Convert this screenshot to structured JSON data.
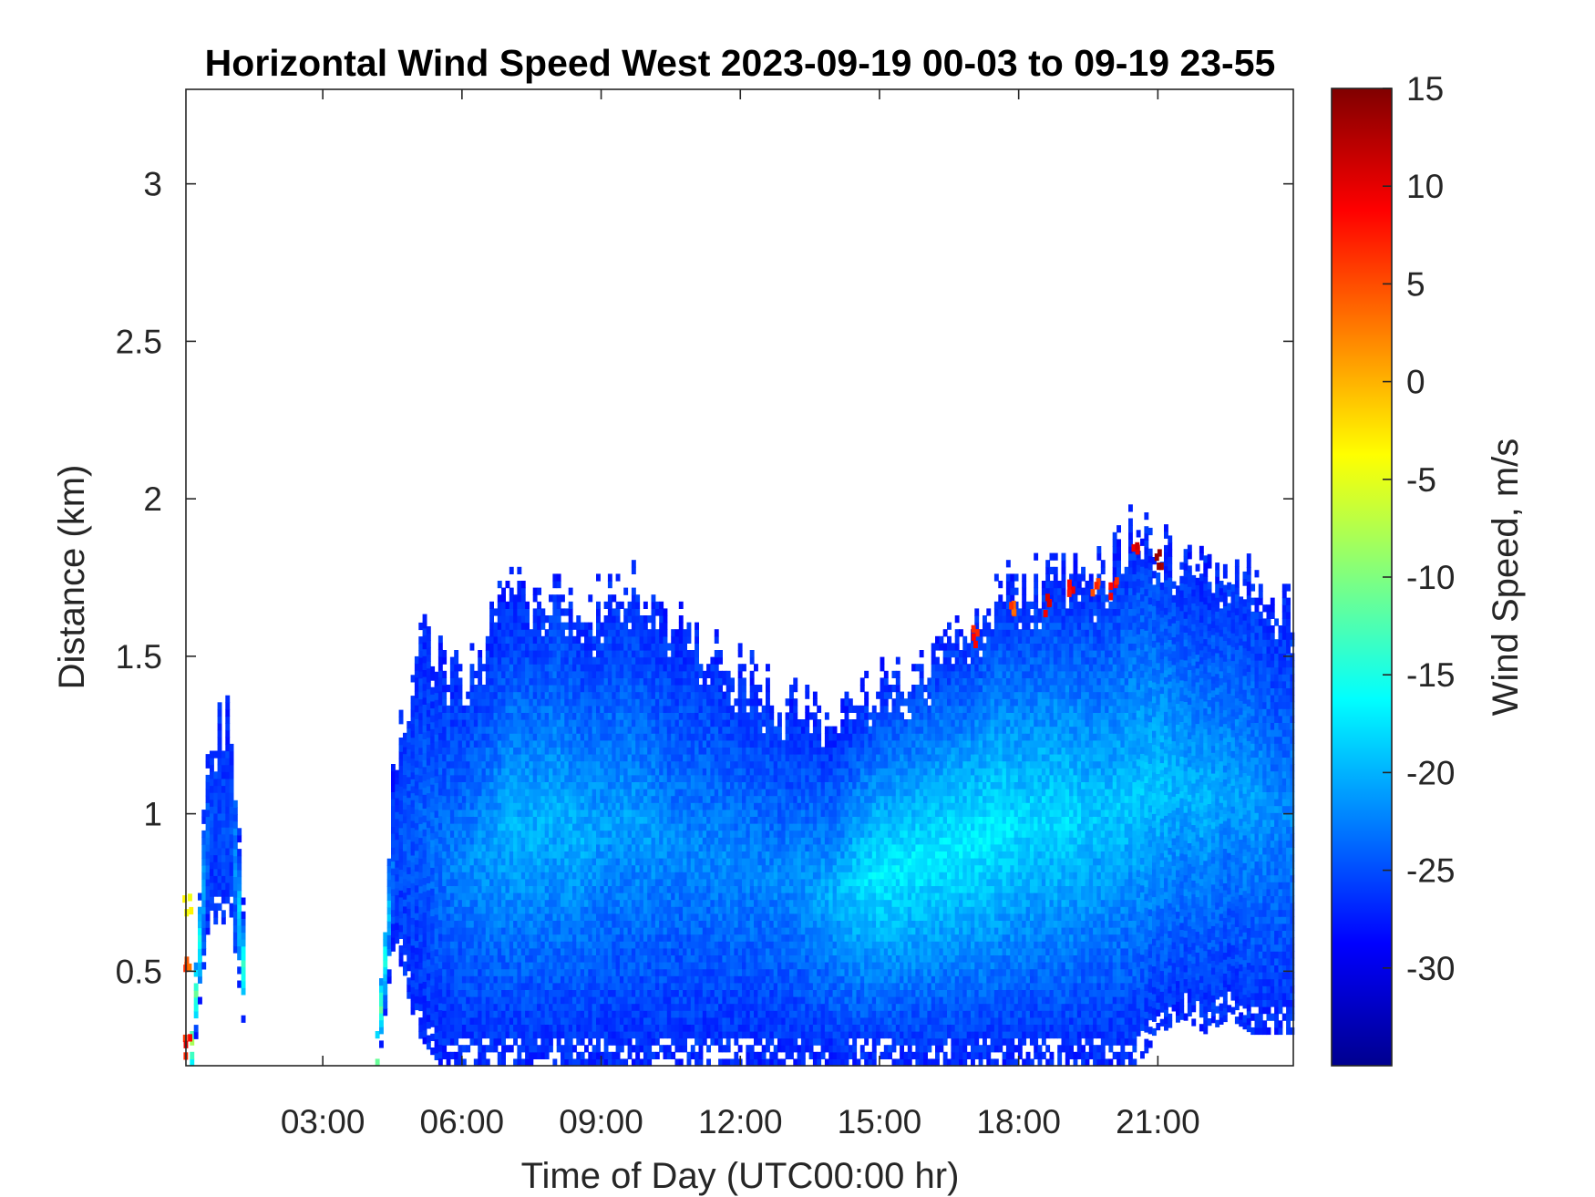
{
  "chart_data": {
    "type": "heatmap",
    "title": "Horizontal Wind Speed West 2023-09-19 00-03 to 09-19 23-55",
    "xlabel": "Time of Day (UTC00:00 hr)",
    "ylabel": "Distance (km)",
    "x_unit": "hours UTC",
    "xlim": [
      0.05,
      23.92
    ],
    "ylim": [
      0.2,
      3.3
    ],
    "x_ticks": [
      {
        "value": 3,
        "label": "03:00"
      },
      {
        "value": 6,
        "label": "06:00"
      },
      {
        "value": 9,
        "label": "09:00"
      },
      {
        "value": 12,
        "label": "12:00"
      },
      {
        "value": 15,
        "label": "15:00"
      },
      {
        "value": 18,
        "label": "18:00"
      },
      {
        "value": 21,
        "label": "21:00"
      }
    ],
    "y_ticks": [
      {
        "value": 0.5,
        "label": "0.5"
      },
      {
        "value": 1,
        "label": "1"
      },
      {
        "value": 1.5,
        "label": "1.5"
      },
      {
        "value": 2,
        "label": "2"
      },
      {
        "value": 2.5,
        "label": "2.5"
      },
      {
        "value": 3,
        "label": "3"
      }
    ],
    "colorbar": {
      "label": "Wind Speed, m/s",
      "colormap": "jet",
      "clim": [
        -35,
        15
      ],
      "ticks": [
        {
          "value": 15,
          "label": "15"
        },
        {
          "value": 10,
          "label": "10"
        },
        {
          "value": 5,
          "label": "5"
        },
        {
          "value": 0,
          "label": "0"
        },
        {
          "value": -5,
          "label": "-5"
        },
        {
          "value": -10,
          "label": "-10"
        },
        {
          "value": -15,
          "label": "-15"
        },
        {
          "value": -20,
          "label": "-20"
        },
        {
          "value": -25,
          "label": "-25"
        },
        {
          "value": -30,
          "label": "-30"
        }
      ]
    },
    "hours": [
      0.0,
      0.5,
      1.0,
      1.5,
      2.0,
      2.5,
      3.0,
      3.5,
      4.0,
      4.5,
      5.0,
      5.5,
      6.0,
      6.5,
      7.0,
      7.5,
      8.0,
      8.5,
      9.0,
      9.5,
      10.0,
      10.5,
      11.0,
      11.5,
      12.0,
      12.5,
      13.0,
      13.5,
      14.0,
      14.5,
      15.0,
      15.5,
      16.0,
      16.5,
      17.0,
      17.5,
      18.0,
      18.5,
      19.0,
      19.5,
      20.0,
      20.5,
      21.0,
      21.5,
      22.0,
      22.5,
      23.0,
      23.5
    ],
    "data_top_km": [
      0.0,
      1.25,
      1.3,
      0.0,
      0.0,
      0.0,
      0.0,
      0.0,
      0.0,
      1.15,
      1.6,
      1.5,
      1.45,
      1.55,
      1.7,
      1.65,
      1.75,
      1.6,
      1.7,
      1.75,
      1.65,
      1.6,
      1.55,
      1.5,
      1.45,
      1.4,
      1.35,
      1.3,
      1.25,
      1.35,
      1.4,
      1.45,
      1.5,
      1.55,
      1.6,
      1.7,
      1.7,
      1.75,
      1.75,
      1.75,
      1.8,
      1.9,
      1.85,
      1.8,
      1.75,
      1.8,
      1.75,
      1.65
    ],
    "data_bottom_km": [
      0.0,
      0.65,
      0.65,
      0.0,
      0.0,
      0.0,
      0.0,
      0.0,
      0.0,
      0.6,
      0.3,
      0.2,
      0.2,
      0.2,
      0.2,
      0.2,
      0.2,
      0.2,
      0.2,
      0.2,
      0.2,
      0.2,
      0.2,
      0.2,
      0.2,
      0.2,
      0.2,
      0.2,
      0.2,
      0.2,
      0.2,
      0.2,
      0.2,
      0.2,
      0.2,
      0.2,
      0.2,
      0.2,
      0.2,
      0.2,
      0.2,
      0.2,
      0.3,
      0.35,
      0.3,
      0.35,
      0.3,
      0.3
    ],
    "core_speed_ms": [
      0,
      -25,
      -25,
      0,
      0,
      0,
      0,
      0,
      0,
      -25,
      -24,
      -23,
      -22,
      -21,
      -20,
      -20,
      -20,
      -20,
      -21,
      -21,
      -21,
      -22,
      -22,
      -22,
      -22,
      -22,
      -22,
      -21,
      -20,
      -18,
      -17,
      -17,
      -17,
      -17,
      -17,
      -17,
      -18,
      -18,
      -18,
      -19,
      -19,
      -19,
      -19,
      -20,
      -20,
      -21,
      -21,
      -22
    ],
    "positive_speed_features": [
      {
        "hour": 17.0,
        "km": 1.55,
        "speed_ms": 8
      },
      {
        "hour": 17.8,
        "km": 1.65,
        "speed_ms": 5
      },
      {
        "hour": 18.6,
        "km": 1.65,
        "speed_ms": 10
      },
      {
        "hour": 19.1,
        "km": 1.7,
        "speed_ms": 8
      },
      {
        "hour": 19.6,
        "km": 1.7,
        "speed_ms": 6
      },
      {
        "hour": 20.0,
        "km": 1.7,
        "speed_ms": 8
      },
      {
        "hour": 20.5,
        "km": 1.85,
        "speed_ms": 10
      },
      {
        "hour": 21.0,
        "km": 1.8,
        "speed_ms": 12
      },
      {
        "hour": 0.05,
        "km": 0.5,
        "speed_ms": 5
      },
      {
        "hour": 0.05,
        "km": 0.7,
        "speed_ms": -5
      },
      {
        "hour": 0.05,
        "km": 0.25,
        "speed_ms": 8
      }
    ]
  }
}
